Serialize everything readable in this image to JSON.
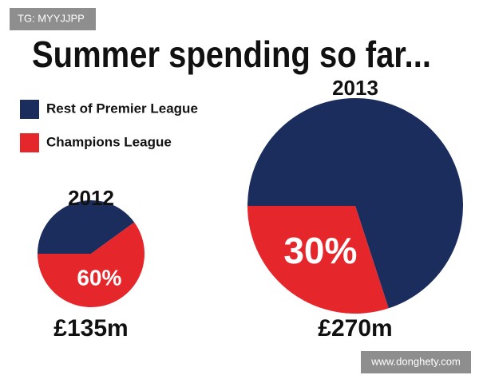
{
  "title": "Summer spending so far...",
  "watermarks": [
    "TG: MYYJJPP",
    "www.donghety.com"
  ],
  "chart_data": [
    {
      "type": "pie",
      "title": "2012",
      "total_label": "£135m",
      "categories": [
        "Rest of Premier League",
        "Champions League"
      ],
      "values": [
        40,
        60
      ],
      "value_labels": [
        null,
        "60%"
      ],
      "colors": [
        "#1b2d5c",
        "#e5262b"
      ]
    },
    {
      "type": "pie",
      "title": "2013",
      "total_label": "£270m",
      "categories": [
        "Rest of Premier League",
        "Champions League"
      ],
      "values": [
        70,
        30
      ],
      "value_labels": [
        null,
        "30%"
      ],
      "colors": [
        "#1b2d5c",
        "#e5262b"
      ]
    }
  ]
}
